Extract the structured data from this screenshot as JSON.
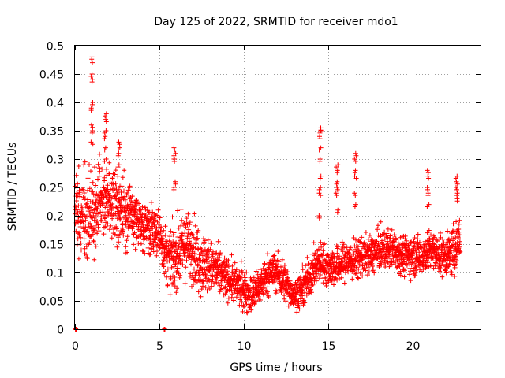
{
  "chart_data": {
    "type": "scatter",
    "title": "Day 125 of 2022, SRMTID for receiver mdo1",
    "xlabel": "GPS time / hours",
    "ylabel": "SRMTID / TECUs",
    "xlim": [
      0,
      24
    ],
    "ylim": [
      0,
      0.5
    ],
    "x_ticks": [
      0,
      5,
      10,
      15,
      20
    ],
    "x_tick_labels": [
      "0",
      "5",
      "10",
      "15",
      "20"
    ],
    "y_ticks": [
      0,
      0.05,
      0.1,
      0.15,
      0.2,
      0.25,
      0.3,
      0.35,
      0.4,
      0.45,
      0.5
    ],
    "y_tick_labels": [
      "0",
      "0.05",
      "0.1",
      "0.15",
      "0.2",
      "0.25",
      "0.3",
      "0.35",
      "0.4",
      "0.45",
      "0.5"
    ],
    "grid": true,
    "marker": "+",
    "color": "#ff0000",
    "trend": {
      "x": [
        0,
        0.5,
        1,
        1.5,
        2,
        2.5,
        3,
        3.5,
        4,
        4.5,
        5,
        5.5,
        6,
        6.5,
        7,
        7.5,
        8,
        8.5,
        9,
        9.5,
        10,
        10.5,
        11,
        11.5,
        12,
        12.5,
        13,
        13.5,
        14,
        14.5,
        15,
        15.5,
        16,
        16.5,
        17,
        17.5,
        18,
        18.5,
        19,
        19.5,
        20,
        20.5,
        21,
        21.5,
        22,
        22.5,
        22.8
      ],
      "y": [
        0.2,
        0.2,
        0.2,
        0.22,
        0.23,
        0.22,
        0.21,
        0.2,
        0.18,
        0.18,
        0.17,
        0.12,
        0.13,
        0.15,
        0.14,
        0.12,
        0.11,
        0.1,
        0.09,
        0.08,
        0.07,
        0.06,
        0.08,
        0.1,
        0.1,
        0.08,
        0.06,
        0.07,
        0.1,
        0.12,
        0.11,
        0.11,
        0.12,
        0.12,
        0.13,
        0.13,
        0.14,
        0.14,
        0.14,
        0.13,
        0.13,
        0.13,
        0.14,
        0.13,
        0.13,
        0.14,
        0.17
      ],
      "spread": [
        0.05,
        0.06,
        0.07,
        0.07,
        0.06,
        0.05,
        0.05,
        0.04,
        0.04,
        0.04,
        0.04,
        0.04,
        0.05,
        0.05,
        0.05,
        0.05,
        0.04,
        0.04,
        0.03,
        0.03,
        0.03,
        0.03,
        0.03,
        0.03,
        0.03,
        0.03,
        0.02,
        0.03,
        0.03,
        0.03,
        0.03,
        0.03,
        0.03,
        0.03,
        0.03,
        0.03,
        0.03,
        0.03,
        0.03,
        0.03,
        0.03,
        0.03,
        0.03,
        0.03,
        0.03,
        0.04,
        0.04
      ]
    },
    "spikes": [
      {
        "x": 1.0,
        "y": [
          0.48,
          0.47,
          0.45,
          0.44,
          0.4,
          0.39,
          0.36,
          0.35,
          0.33
        ]
      },
      {
        "x": 1.8,
        "y": [
          0.38,
          0.37,
          0.35,
          0.34,
          0.32,
          0.3
        ]
      },
      {
        "x": 2.6,
        "y": [
          0.33,
          0.32,
          0.31,
          0.29
        ]
      },
      {
        "x": 5.9,
        "y": [
          0.32,
          0.31,
          0.3,
          0.3,
          0.26,
          0.25
        ]
      },
      {
        "x": 14.5,
        "y": [
          0.355,
          0.35,
          0.34,
          0.32,
          0.3,
          0.27,
          0.25,
          0.24,
          0.2
        ]
      },
      {
        "x": 15.5,
        "y": [
          0.29,
          0.28,
          0.26,
          0.25,
          0.24,
          0.21
        ]
      },
      {
        "x": 16.6,
        "y": [
          0.31,
          0.3,
          0.28,
          0.27,
          0.24,
          0.22
        ]
      },
      {
        "x": 20.9,
        "y": [
          0.28,
          0.27,
          0.25,
          0.24,
          0.22
        ]
      },
      {
        "x": 22.6,
        "y": [
          0.27,
          0.26,
          0.25,
          0.24,
          0.23
        ]
      }
    ],
    "zero_markers": [
      0.05,
      5.3
    ]
  }
}
